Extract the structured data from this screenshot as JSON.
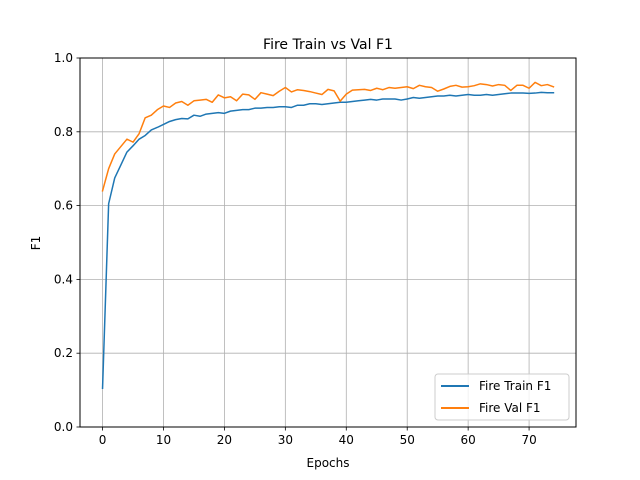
{
  "chart_data": {
    "type": "line",
    "title": "Fire Train vs Val F1",
    "xlabel": "Epochs",
    "ylabel": "F1",
    "xlim": [
      -3.7,
      77.7
    ],
    "ylim": [
      0.0,
      1.0
    ],
    "xticks": [
      0,
      10,
      20,
      30,
      40,
      50,
      60,
      70
    ],
    "yticks": [
      0.0,
      0.2,
      0.4,
      0.6,
      0.8,
      1.0
    ],
    "xtick_labels": [
      "0",
      "10",
      "20",
      "30",
      "40",
      "50",
      "60",
      "70"
    ],
    "ytick_labels": [
      "0.0",
      "0.2",
      "0.4",
      "0.6",
      "0.8",
      "1.0"
    ],
    "grid": true,
    "legend_position": "lower right",
    "series": [
      {
        "name": "Fire Train F1",
        "color": "#1f77b4",
        "values": [
          0.105,
          0.605,
          0.675,
          0.71,
          0.745,
          0.762,
          0.78,
          0.79,
          0.805,
          0.812,
          0.82,
          0.828,
          0.833,
          0.836,
          0.835,
          0.845,
          0.842,
          0.848,
          0.85,
          0.852,
          0.85,
          0.856,
          0.858,
          0.86,
          0.86,
          0.864,
          0.864,
          0.866,
          0.866,
          0.868,
          0.868,
          0.866,
          0.872,
          0.872,
          0.876,
          0.876,
          0.874,
          0.876,
          0.878,
          0.88,
          0.88,
          0.882,
          0.884,
          0.886,
          0.888,
          0.886,
          0.889,
          0.889,
          0.889,
          0.886,
          0.889,
          0.893,
          0.891,
          0.893,
          0.895,
          0.897,
          0.897,
          0.899,
          0.897,
          0.899,
          0.901,
          0.899,
          0.899,
          0.901,
          0.899,
          0.901,
          0.903,
          0.905,
          0.905,
          0.905,
          0.904,
          0.905,
          0.907,
          0.906,
          0.906
        ]
      },
      {
        "name": "Fire Val F1",
        "color": "#ff7f0e",
        "values": [
          0.64,
          0.7,
          0.74,
          0.76,
          0.78,
          0.772,
          0.795,
          0.838,
          0.845,
          0.86,
          0.87,
          0.866,
          0.878,
          0.882,
          0.872,
          0.884,
          0.886,
          0.888,
          0.88,
          0.9,
          0.892,
          0.895,
          0.884,
          0.902,
          0.9,
          0.888,
          0.906,
          0.902,
          0.898,
          0.91,
          0.92,
          0.908,
          0.914,
          0.912,
          0.909,
          0.905,
          0.901,
          0.915,
          0.911,
          0.883,
          0.902,
          0.913,
          0.914,
          0.915,
          0.912,
          0.918,
          0.914,
          0.92,
          0.918,
          0.92,
          0.922,
          0.917,
          0.926,
          0.922,
          0.92,
          0.91,
          0.916,
          0.923,
          0.926,
          0.921,
          0.922,
          0.925,
          0.93,
          0.928,
          0.924,
          0.928,
          0.926,
          0.912,
          0.926,
          0.926,
          0.918,
          0.934,
          0.925,
          0.928,
          0.922
        ]
      }
    ]
  }
}
